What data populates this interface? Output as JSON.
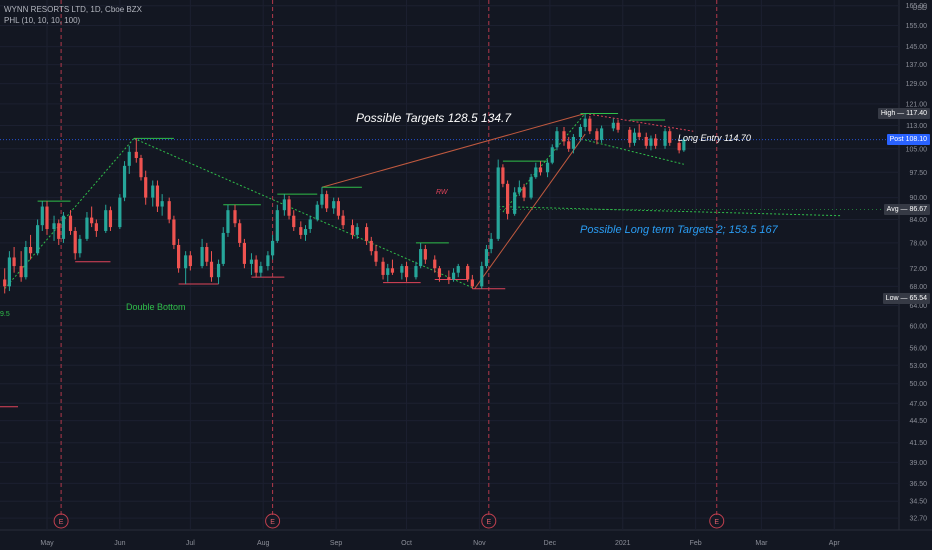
{
  "header": {
    "symbol": "WYNN RESORTS LTD, 1D, Cboe BZX",
    "indicator": "PHL (10, 10, 10, 100)"
  },
  "chart_data": {
    "type": "candlestick",
    "currency": "USD",
    "y_scale": "log",
    "ylim": [
      31.5,
      168
    ],
    "y_ticks": [
      "165.00",
      "155.00",
      "145.00",
      "137.00",
      "129.00",
      "121.00",
      "113.00",
      "105.00",
      "97.50",
      "90.00",
      "84.00",
      "78.00",
      "72.00",
      "68.00",
      "64.00",
      "60.00",
      "56.00",
      "53.00",
      "50.00",
      "47.00",
      "44.50",
      "41.50",
      "39.00",
      "36.50",
      "34.50",
      "32.70"
    ],
    "x_ticks": [
      "May",
      "Jun",
      "Jul",
      "Aug",
      "Sep",
      "Oct",
      "Nov",
      "Dec",
      "2021",
      "Feb",
      "Mar",
      "Apr"
    ],
    "earnings_marker": "E",
    "earnings_dates": [
      "2020-05-07",
      "2020-08-05",
      "2020-11-05",
      "2021-02-10"
    ],
    "price_tags": [
      {
        "label": "High",
        "value": "117.40",
        "color": "#363a45"
      },
      {
        "label": "Post",
        "value": "108.10",
        "color": "#2962ff"
      },
      {
        "label": "Avg",
        "value": "86.67",
        "color": "#363a45"
      },
      {
        "label": "Low",
        "value": "65.54",
        "color": "#363a45"
      }
    ],
    "annotations": {
      "targets": "Possible Targets    128.5  134.7",
      "long_entry": "Long Entry 114.70",
      "rw": "RW",
      "long_term": "Possible Long term Targets 2;  153.5   167",
      "double_bottom": "Double Bottom",
      "edge_label": "9.5"
    },
    "avg_line": 86.67,
    "post_line": 108.1,
    "candles": [
      {
        "d": "2020-04-13",
        "o": 69.5,
        "h": 72.0,
        "l": 66.5,
        "c": 68.0
      },
      {
        "d": "2020-04-15",
        "o": 68.0,
        "h": 76.0,
        "l": 67.0,
        "c": 74.5
      },
      {
        "d": "2020-04-17",
        "o": 74.5,
        "h": 77.0,
        "l": 71.0,
        "c": 72.5
      },
      {
        "d": "2020-04-20",
        "o": 72.5,
        "h": 76.0,
        "l": 69.0,
        "c": 70.0
      },
      {
        "d": "2020-04-22",
        "o": 70.0,
        "h": 78.5,
        "l": 69.5,
        "c": 77.0
      },
      {
        "d": "2020-04-24",
        "o": 77.0,
        "h": 80.0,
        "l": 74.0,
        "c": 75.5
      },
      {
        "d": "2020-04-27",
        "o": 75.5,
        "h": 84.0,
        "l": 75.0,
        "c": 82.5
      },
      {
        "d": "2020-04-29",
        "o": 82.5,
        "h": 89.0,
        "l": 81.0,
        "c": 87.5
      },
      {
        "d": "2020-05-01",
        "o": 87.5,
        "h": 89.0,
        "l": 80.0,
        "c": 81.5
      },
      {
        "d": "2020-05-04",
        "o": 81.5,
        "h": 85.0,
        "l": 78.5,
        "c": 83.0
      },
      {
        "d": "2020-05-06",
        "o": 83.0,
        "h": 84.0,
        "l": 77.5,
        "c": 79.0
      },
      {
        "d": "2020-05-08",
        "o": 79.0,
        "h": 86.0,
        "l": 78.0,
        "c": 85.0
      },
      {
        "d": "2020-05-11",
        "o": 85.0,
        "h": 86.5,
        "l": 80.0,
        "c": 81.0
      },
      {
        "d": "2020-05-13",
        "o": 81.0,
        "h": 82.0,
        "l": 74.0,
        "c": 75.5
      },
      {
        "d": "2020-05-15",
        "o": 75.5,
        "h": 80.0,
        "l": 74.5,
        "c": 79.0
      },
      {
        "d": "2020-05-18",
        "o": 79.0,
        "h": 86.0,
        "l": 78.5,
        "c": 84.5
      },
      {
        "d": "2020-05-20",
        "o": 84.5,
        "h": 87.5,
        "l": 82.0,
        "c": 83.0
      },
      {
        "d": "2020-05-22",
        "o": 83.0,
        "h": 84.0,
        "l": 79.5,
        "c": 81.0
      },
      {
        "d": "2020-05-26",
        "o": 81.0,
        "h": 88.0,
        "l": 80.5,
        "c": 86.5
      },
      {
        "d": "2020-05-28",
        "o": 86.5,
        "h": 87.5,
        "l": 81.0,
        "c": 82.0
      },
      {
        "d": "2020-06-01",
        "o": 82.0,
        "h": 91.0,
        "l": 81.5,
        "c": 90.0
      },
      {
        "d": "2020-06-03",
        "o": 90.0,
        "h": 101.0,
        "l": 89.0,
        "c": 99.5
      },
      {
        "d": "2020-06-05",
        "o": 99.5,
        "h": 106.0,
        "l": 97.0,
        "c": 104.0
      },
      {
        "d": "2020-06-08",
        "o": 104.0,
        "h": 108.5,
        "l": 100.5,
        "c": 102.0
      },
      {
        "d": "2020-06-10",
        "o": 102.0,
        "h": 103.0,
        "l": 95.0,
        "c": 96.0
      },
      {
        "d": "2020-06-12",
        "o": 96.0,
        "h": 98.0,
        "l": 88.0,
        "c": 90.0
      },
      {
        "d": "2020-06-15",
        "o": 90.0,
        "h": 95.0,
        "l": 87.5,
        "c": 93.5
      },
      {
        "d": "2020-06-17",
        "o": 93.5,
        "h": 95.0,
        "l": 86.0,
        "c": 87.5
      },
      {
        "d": "2020-06-19",
        "o": 87.5,
        "h": 91.0,
        "l": 85.0,
        "c": 89.0
      },
      {
        "d": "2020-06-22",
        "o": 89.0,
        "h": 90.0,
        "l": 83.0,
        "c": 84.0
      },
      {
        "d": "2020-06-24",
        "o": 84.0,
        "h": 85.0,
        "l": 76.5,
        "c": 77.5
      },
      {
        "d": "2020-06-26",
        "o": 77.5,
        "h": 79.0,
        "l": 71.0,
        "c": 72.0
      },
      {
        "d": "2020-06-29",
        "o": 72.0,
        "h": 76.0,
        "l": 68.5,
        "c": 75.0
      },
      {
        "d": "2020-07-01",
        "o": 75.0,
        "h": 76.0,
        "l": 71.5,
        "c": 72.5
      },
      {
        "d": "2020-07-06",
        "o": 72.5,
        "h": 79.0,
        "l": 72.0,
        "c": 77.0
      },
      {
        "d": "2020-07-08",
        "o": 77.0,
        "h": 78.0,
        "l": 72.5,
        "c": 73.5
      },
      {
        "d": "2020-07-10",
        "o": 73.5,
        "h": 76.0,
        "l": 69.0,
        "c": 70.0
      },
      {
        "d": "2020-07-13",
        "o": 70.0,
        "h": 74.0,
        "l": 68.5,
        "c": 73.0
      },
      {
        "d": "2020-07-15",
        "o": 73.0,
        "h": 82.0,
        "l": 72.5,
        "c": 80.5
      },
      {
        "d": "2020-07-17",
        "o": 80.5,
        "h": 88.0,
        "l": 79.5,
        "c": 86.5
      },
      {
        "d": "2020-07-20",
        "o": 86.5,
        "h": 88.0,
        "l": 82.0,
        "c": 83.0
      },
      {
        "d": "2020-07-22",
        "o": 83.0,
        "h": 84.0,
        "l": 77.0,
        "c": 78.0
      },
      {
        "d": "2020-07-24",
        "o": 78.0,
        "h": 79.0,
        "l": 72.0,
        "c": 73.0
      },
      {
        "d": "2020-07-27",
        "o": 73.0,
        "h": 75.5,
        "l": 70.5,
        "c": 74.0
      },
      {
        "d": "2020-07-29",
        "o": 74.0,
        "h": 75.0,
        "l": 70.0,
        "c": 71.0
      },
      {
        "d": "2020-07-31",
        "o": 71.0,
        "h": 73.5,
        "l": 70.0,
        "c": 72.5
      },
      {
        "d": "2020-08-03",
        "o": 72.5,
        "h": 76.0,
        "l": 71.5,
        "c": 75.0
      },
      {
        "d": "2020-08-05",
        "o": 75.0,
        "h": 80.0,
        "l": 74.0,
        "c": 78.5
      },
      {
        "d": "2020-08-07",
        "o": 78.5,
        "h": 88.0,
        "l": 78.0,
        "c": 86.5
      },
      {
        "d": "2020-08-10",
        "o": 86.5,
        "h": 91.0,
        "l": 85.0,
        "c": 89.5
      },
      {
        "d": "2020-08-12",
        "o": 89.5,
        "h": 90.5,
        "l": 84.0,
        "c": 85.0
      },
      {
        "d": "2020-08-14",
        "o": 85.0,
        "h": 86.5,
        "l": 81.0,
        "c": 82.0
      },
      {
        "d": "2020-08-17",
        "o": 82.0,
        "h": 83.5,
        "l": 79.0,
        "c": 80.0
      },
      {
        "d": "2020-08-19",
        "o": 80.0,
        "h": 82.5,
        "l": 78.5,
        "c": 81.5
      },
      {
        "d": "2020-08-21",
        "o": 81.5,
        "h": 85.0,
        "l": 80.5,
        "c": 84.0
      },
      {
        "d": "2020-08-24",
        "o": 84.0,
        "h": 89.0,
        "l": 83.5,
        "c": 88.0
      },
      {
        "d": "2020-08-26",
        "o": 88.0,
        "h": 93.0,
        "l": 87.0,
        "c": 91.0
      },
      {
        "d": "2020-08-28",
        "o": 91.0,
        "h": 92.0,
        "l": 86.0,
        "c": 87.0
      },
      {
        "d": "2020-08-31",
        "o": 87.0,
        "h": 90.0,
        "l": 85.5,
        "c": 89.0
      },
      {
        "d": "2020-09-02",
        "o": 89.0,
        "h": 90.0,
        "l": 84.0,
        "c": 85.0
      },
      {
        "d": "2020-09-04",
        "o": 85.0,
        "h": 86.5,
        "l": 81.5,
        "c": 82.5
      },
      {
        "d": "2020-09-08",
        "o": 82.5,
        "h": 84.0,
        "l": 79.0,
        "c": 80.0
      },
      {
        "d": "2020-09-10",
        "o": 80.0,
        "h": 83.0,
        "l": 79.0,
        "c": 82.0
      },
      {
        "d": "2020-09-14",
        "o": 82.0,
        "h": 83.0,
        "l": 77.5,
        "c": 78.5
      },
      {
        "d": "2020-09-16",
        "o": 78.5,
        "h": 79.5,
        "l": 75.0,
        "c": 76.0
      },
      {
        "d": "2020-09-18",
        "o": 76.0,
        "h": 77.5,
        "l": 72.5,
        "c": 73.5
      },
      {
        "d": "2020-09-21",
        "o": 73.5,
        "h": 74.5,
        "l": 69.5,
        "c": 70.5
      },
      {
        "d": "2020-09-23",
        "o": 70.5,
        "h": 73.0,
        "l": 69.0,
        "c": 72.0
      },
      {
        "d": "2020-09-25",
        "o": 72.0,
        "h": 74.0,
        "l": 70.5,
        "c": 71.0
      },
      {
        "d": "2020-09-29",
        "o": 71.0,
        "h": 73.0,
        "l": 69.5,
        "c": 72.5
      },
      {
        "d": "2020-10-01",
        "o": 72.5,
        "h": 73.5,
        "l": 69.0,
        "c": 70.0
      },
      {
        "d": "2020-10-05",
        "o": 70.0,
        "h": 73.5,
        "l": 69.5,
        "c": 72.5
      },
      {
        "d": "2020-10-07",
        "o": 72.5,
        "h": 78.0,
        "l": 72.0,
        "c": 76.5
      },
      {
        "d": "2020-10-09",
        "o": 76.5,
        "h": 77.5,
        "l": 73.0,
        "c": 74.0
      },
      {
        "d": "2020-10-13",
        "o": 74.0,
        "h": 75.0,
        "l": 71.0,
        "c": 72.0
      },
      {
        "d": "2020-10-15",
        "o": 72.0,
        "h": 72.5,
        "l": 69.0,
        "c": 70.0
      },
      {
        "d": "2020-10-19",
        "o": 70.0,
        "h": 71.5,
        "l": 68.5,
        "c": 69.5
      },
      {
        "d": "2020-10-21",
        "o": 69.5,
        "h": 72.0,
        "l": 69.0,
        "c": 71.0
      },
      {
        "d": "2020-10-23",
        "o": 71.0,
        "h": 73.0,
        "l": 70.0,
        "c": 72.5
      },
      {
        "d": "2020-10-27",
        "o": 72.5,
        "h": 73.0,
        "l": 69.0,
        "c": 69.5
      },
      {
        "d": "2020-10-29",
        "o": 69.5,
        "h": 70.5,
        "l": 67.5,
        "c": 68.0
      },
      {
        "d": "2020-11-02",
        "o": 68.0,
        "h": 73.5,
        "l": 67.5,
        "c": 72.5
      },
      {
        "d": "2020-11-04",
        "o": 72.5,
        "h": 77.5,
        "l": 72.0,
        "c": 76.5
      },
      {
        "d": "2020-11-06",
        "o": 76.5,
        "h": 80.5,
        "l": 75.5,
        "c": 79.0
      },
      {
        "d": "2020-11-09",
        "o": 79.0,
        "h": 101.5,
        "l": 78.5,
        "c": 99.0
      },
      {
        "d": "2020-11-11",
        "o": 99.0,
        "h": 100.0,
        "l": 93.0,
        "c": 94.0
      },
      {
        "d": "2020-11-13",
        "o": 94.0,
        "h": 95.0,
        "l": 84.0,
        "c": 85.5
      },
      {
        "d": "2020-11-16",
        "o": 85.5,
        "h": 93.0,
        "l": 85.0,
        "c": 91.5
      },
      {
        "d": "2020-11-18",
        "o": 91.5,
        "h": 95.0,
        "l": 90.5,
        "c": 93.0
      },
      {
        "d": "2020-11-20",
        "o": 93.0,
        "h": 94.0,
        "l": 89.0,
        "c": 90.0
      },
      {
        "d": "2020-11-23",
        "o": 90.0,
        "h": 97.0,
        "l": 89.5,
        "c": 96.0
      },
      {
        "d": "2020-11-25",
        "o": 96.0,
        "h": 100.5,
        "l": 95.5,
        "c": 99.0
      },
      {
        "d": "2020-11-27",
        "o": 99.0,
        "h": 101.0,
        "l": 96.5,
        "c": 97.5
      },
      {
        "d": "2020-11-30",
        "o": 97.5,
        "h": 101.5,
        "l": 96.0,
        "c": 100.5
      },
      {
        "d": "2020-12-02",
        "o": 100.5,
        "h": 106.5,
        "l": 100.0,
        "c": 105.5
      },
      {
        "d": "2020-12-04",
        "o": 105.5,
        "h": 112.5,
        "l": 104.5,
        "c": 111.0
      },
      {
        "d": "2020-12-07",
        "o": 111.0,
        "h": 112.5,
        "l": 106.0,
        "c": 107.5
      },
      {
        "d": "2020-12-09",
        "o": 107.5,
        "h": 109.0,
        "l": 104.0,
        "c": 105.0
      },
      {
        "d": "2020-12-11",
        "o": 105.0,
        "h": 110.0,
        "l": 103.5,
        "c": 109.0
      },
      {
        "d": "2020-12-14",
        "o": 109.0,
        "h": 113.5,
        "l": 107.5,
        "c": 112.5
      },
      {
        "d": "2020-12-16",
        "o": 112.5,
        "h": 117.4,
        "l": 111.0,
        "c": 115.5
      },
      {
        "d": "2020-12-18",
        "o": 115.5,
        "h": 116.5,
        "l": 110.0,
        "c": 111.0
      },
      {
        "d": "2020-12-21",
        "o": 111.0,
        "h": 112.0,
        "l": 106.5,
        "c": 108.0
      },
      {
        "d": "2020-12-23",
        "o": 108.0,
        "h": 113.0,
        "l": 107.0,
        "c": 112.0
      },
      {
        "d": "2020-12-28",
        "o": 112.0,
        "h": 115.5,
        "l": 111.0,
        "c": 114.0
      },
      {
        "d": "2020-12-30",
        "o": 114.0,
        "h": 115.0,
        "l": 110.5,
        "c": 111.5
      },
      {
        "d": "2021-01-04",
        "o": 111.5,
        "h": 112.5,
        "l": 105.5,
        "c": 107.0
      },
      {
        "d": "2021-01-06",
        "o": 107.0,
        "h": 112.0,
        "l": 106.0,
        "c": 110.5
      },
      {
        "d": "2021-01-08",
        "o": 110.5,
        "h": 113.5,
        "l": 108.0,
        "c": 109.0
      },
      {
        "d": "2021-01-11",
        "o": 109.0,
        "h": 110.5,
        "l": 105.0,
        "c": 106.0
      },
      {
        "d": "2021-01-13",
        "o": 106.0,
        "h": 109.5,
        "l": 104.5,
        "c": 108.5
      },
      {
        "d": "2021-01-15",
        "o": 108.5,
        "h": 110.0,
        "l": 105.0,
        "c": 106.0
      },
      {
        "d": "2021-01-19",
        "o": 106.0,
        "h": 112.0,
        "l": 105.0,
        "c": 111.0
      },
      {
        "d": "2021-01-21",
        "o": 111.0,
        "h": 112.0,
        "l": 106.0,
        "c": 107.0
      },
      {
        "d": "2021-01-25",
        "o": 107.0,
        "h": 108.0,
        "l": 103.5,
        "c": 104.5
      },
      {
        "d": "2021-01-27",
        "o": 104.5,
        "h": 109.0,
        "l": 104.0,
        "c": 108.1
      }
    ]
  }
}
